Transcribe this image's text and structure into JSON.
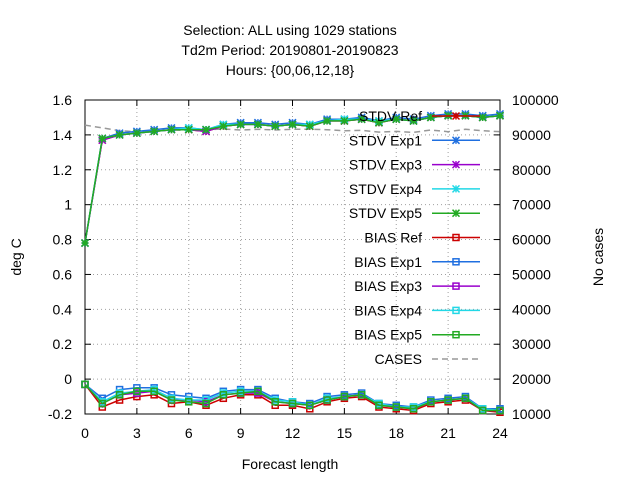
{
  "chart_data": {
    "type": "line",
    "title_lines": [
      "Selection: ALL using  1029 stations",
      "Td2m   Period: 20190801-20190823",
      "Hours: {00,06,12,18}"
    ],
    "xlabel": "Forecast length",
    "ylabel": "deg C",
    "y2label": "No cases",
    "xlim": [
      0,
      24
    ],
    "ylim": [
      -0.2,
      1.6
    ],
    "y2lim": [
      10000,
      100000
    ],
    "x_ticks": [
      0,
      3,
      6,
      9,
      12,
      15,
      18,
      21,
      24
    ],
    "y_ticks": [
      -0.2,
      0,
      0.2,
      0.4,
      0.6,
      0.8,
      1,
      1.2,
      1.4,
      1.6
    ],
    "y_tick_labels": [
      "-0.2",
      "0",
      "0.2",
      "0.4",
      "0.6",
      "0.8",
      "1",
      "1.2",
      "1.4",
      "1.6"
    ],
    "y2_ticks": [
      10000,
      20000,
      30000,
      40000,
      50000,
      60000,
      70000,
      80000,
      90000,
      100000
    ],
    "grid": true,
    "legend_position": "top-right",
    "x": [
      0,
      1,
      2,
      3,
      4,
      5,
      6,
      7,
      8,
      9,
      10,
      11,
      12,
      13,
      14,
      15,
      16,
      17,
      18,
      19,
      20,
      21,
      22,
      23,
      24
    ],
    "series": [
      {
        "name": "STDV Ref",
        "color": "#cc0000",
        "marker": "star",
        "dash": "solid",
        "axis": "y1",
        "values": [
          0.78,
          1.37,
          1.4,
          1.41,
          1.42,
          1.43,
          1.43,
          1.42,
          1.45,
          1.46,
          1.46,
          1.45,
          1.46,
          1.45,
          1.48,
          1.48,
          1.49,
          1.47,
          1.49,
          1.48,
          1.5,
          1.51,
          1.51,
          1.5,
          1.51
        ]
      },
      {
        "name": "STDV Exp1",
        "color": "#1f6fe0",
        "marker": "star",
        "dash": "solid",
        "axis": "y1",
        "values": [
          0.78,
          1.38,
          1.41,
          1.42,
          1.43,
          1.44,
          1.44,
          1.43,
          1.46,
          1.47,
          1.47,
          1.46,
          1.47,
          1.46,
          1.49,
          1.49,
          1.5,
          1.48,
          1.5,
          1.49,
          1.51,
          1.52,
          1.52,
          1.51,
          1.52
        ]
      },
      {
        "name": "STDV Exp3",
        "color": "#9900cc",
        "marker": "star",
        "dash": "solid",
        "axis": "y1",
        "values": [
          0.78,
          1.37,
          1.4,
          1.41,
          1.42,
          1.43,
          1.43,
          1.42,
          1.45,
          1.46,
          1.46,
          1.45,
          1.46,
          1.45,
          1.48,
          1.48,
          1.49,
          1.47,
          1.49,
          1.48,
          1.5,
          1.51,
          1.51,
          1.5,
          1.51
        ]
      },
      {
        "name": "STDV Exp4",
        "color": "#22d8e6",
        "marker": "star",
        "dash": "solid",
        "axis": "y1",
        "values": [
          0.78,
          1.38,
          1.4,
          1.41,
          1.42,
          1.43,
          1.44,
          1.43,
          1.46,
          1.46,
          1.46,
          1.45,
          1.46,
          1.46,
          1.48,
          1.49,
          1.49,
          1.48,
          1.49,
          1.48,
          1.5,
          1.51,
          1.51,
          1.5,
          1.51
        ]
      },
      {
        "name": "STDV Exp5",
        "color": "#22aa22",
        "marker": "star",
        "dash": "solid",
        "axis": "y1",
        "values": [
          0.78,
          1.38,
          1.4,
          1.41,
          1.42,
          1.43,
          1.43,
          1.43,
          1.45,
          1.46,
          1.46,
          1.45,
          1.46,
          1.45,
          1.48,
          1.48,
          1.49,
          1.47,
          1.49,
          1.48,
          1.5,
          1.51,
          1.51,
          1.5,
          1.51
        ]
      },
      {
        "name": "BIAS Ref",
        "color": "#cc0000",
        "marker": "square",
        "dash": "solid",
        "axis": "y1",
        "values": [
          -0.03,
          -0.16,
          -0.12,
          -0.1,
          -0.09,
          -0.14,
          -0.13,
          -0.15,
          -0.11,
          -0.09,
          -0.09,
          -0.15,
          -0.15,
          -0.17,
          -0.13,
          -0.11,
          -0.1,
          -0.16,
          -0.17,
          -0.18,
          -0.14,
          -0.13,
          -0.12,
          -0.18,
          -0.19
        ]
      },
      {
        "name": "BIAS Exp1",
        "color": "#1f6fe0",
        "marker": "square",
        "dash": "solid",
        "axis": "y1",
        "values": [
          -0.03,
          -0.11,
          -0.06,
          -0.05,
          -0.05,
          -0.09,
          -0.1,
          -0.11,
          -0.07,
          -0.06,
          -0.06,
          -0.11,
          -0.13,
          -0.14,
          -0.1,
          -0.09,
          -0.08,
          -0.14,
          -0.15,
          -0.16,
          -0.12,
          -0.11,
          -0.1,
          -0.17,
          -0.17
        ]
      },
      {
        "name": "BIAS Exp3",
        "color": "#9900cc",
        "marker": "square",
        "dash": "solid",
        "axis": "y1",
        "values": [
          -0.03,
          -0.14,
          -0.09,
          -0.08,
          -0.07,
          -0.12,
          -0.12,
          -0.13,
          -0.09,
          -0.08,
          -0.08,
          -0.13,
          -0.14,
          -0.15,
          -0.12,
          -0.1,
          -0.09,
          -0.15,
          -0.16,
          -0.17,
          -0.13,
          -0.12,
          -0.11,
          -0.18,
          -0.18
        ]
      },
      {
        "name": "BIAS Exp4",
        "color": "#22d8e6",
        "marker": "square",
        "dash": "solid",
        "axis": "y1",
        "values": [
          -0.03,
          -0.13,
          -0.08,
          -0.07,
          -0.06,
          -0.11,
          -0.12,
          -0.12,
          -0.08,
          -0.07,
          -0.07,
          -0.12,
          -0.13,
          -0.15,
          -0.11,
          -0.1,
          -0.09,
          -0.14,
          -0.16,
          -0.16,
          -0.13,
          -0.12,
          -0.11,
          -0.17,
          -0.18
        ]
      },
      {
        "name": "BIAS Exp5",
        "color": "#22aa22",
        "marker": "square",
        "dash": "solid",
        "axis": "y1",
        "values": [
          -0.03,
          -0.14,
          -0.09,
          -0.07,
          -0.07,
          -0.12,
          -0.13,
          -0.14,
          -0.09,
          -0.08,
          -0.07,
          -0.13,
          -0.14,
          -0.15,
          -0.12,
          -0.1,
          -0.09,
          -0.15,
          -0.16,
          -0.17,
          -0.13,
          -0.12,
          -0.11,
          -0.18,
          -0.18
        ]
      },
      {
        "name": "CASES",
        "color": "#999999",
        "marker": "none",
        "dash": "dashed",
        "axis": "y2",
        "values": [
          92800,
          92000,
          91200,
          90900,
          91100,
          91400,
          91300,
          91500,
          91700,
          91400,
          91600,
          91400,
          91600,
          91600,
          91500,
          91200,
          91300,
          90800,
          91000,
          90700,
          91400,
          90900,
          91600,
          91200,
          90900
        ]
      }
    ]
  }
}
